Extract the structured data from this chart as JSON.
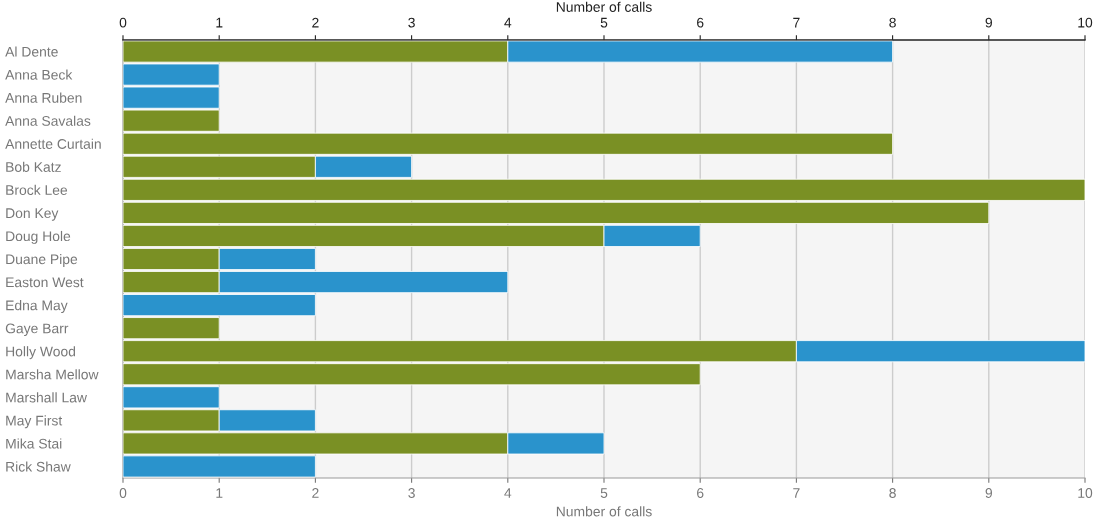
{
  "chart_data": {
    "type": "bar",
    "orientation": "horizontal",
    "stacked": true,
    "categories": [
      "Al Dente",
      "Anna Beck",
      "Anna Ruben",
      "Anna Savalas",
      "Annette Curtain",
      "Bob Katz",
      "Brock Lee",
      "Don Key",
      "Doug Hole",
      "Duane Pipe",
      "Easton West",
      "Edna May",
      "Gaye Barr",
      "Holly Wood",
      "Marsha Mellow",
      "Marshall Law",
      "May First",
      "Mika Stai",
      "Rick Shaw"
    ],
    "series": [
      {
        "color": "#7a9024",
        "values": [
          4,
          null,
          null,
          1,
          8,
          2,
          10,
          9,
          5,
          1,
          1,
          null,
          1,
          7,
          6,
          null,
          1,
          4,
          null
        ]
      },
      {
        "color": "#2a93cc",
        "values": [
          4,
          1,
          1,
          null,
          null,
          1,
          null,
          null,
          1,
          1,
          3,
          2,
          null,
          3,
          null,
          1,
          1,
          1,
          2
        ]
      }
    ],
    "xlabel": "Number of calls",
    "xlim": [
      0,
      10
    ],
    "xticks": [
      0,
      1,
      2,
      3,
      4,
      5,
      6,
      7,
      8,
      9,
      10
    ],
    "x2label": "Number of calls",
    "x2lim": [
      0,
      10
    ],
    "x2ticks": [
      0,
      1,
      2,
      3,
      4,
      5,
      6,
      7,
      8,
      9,
      10
    ],
    "grid": "x"
  }
}
